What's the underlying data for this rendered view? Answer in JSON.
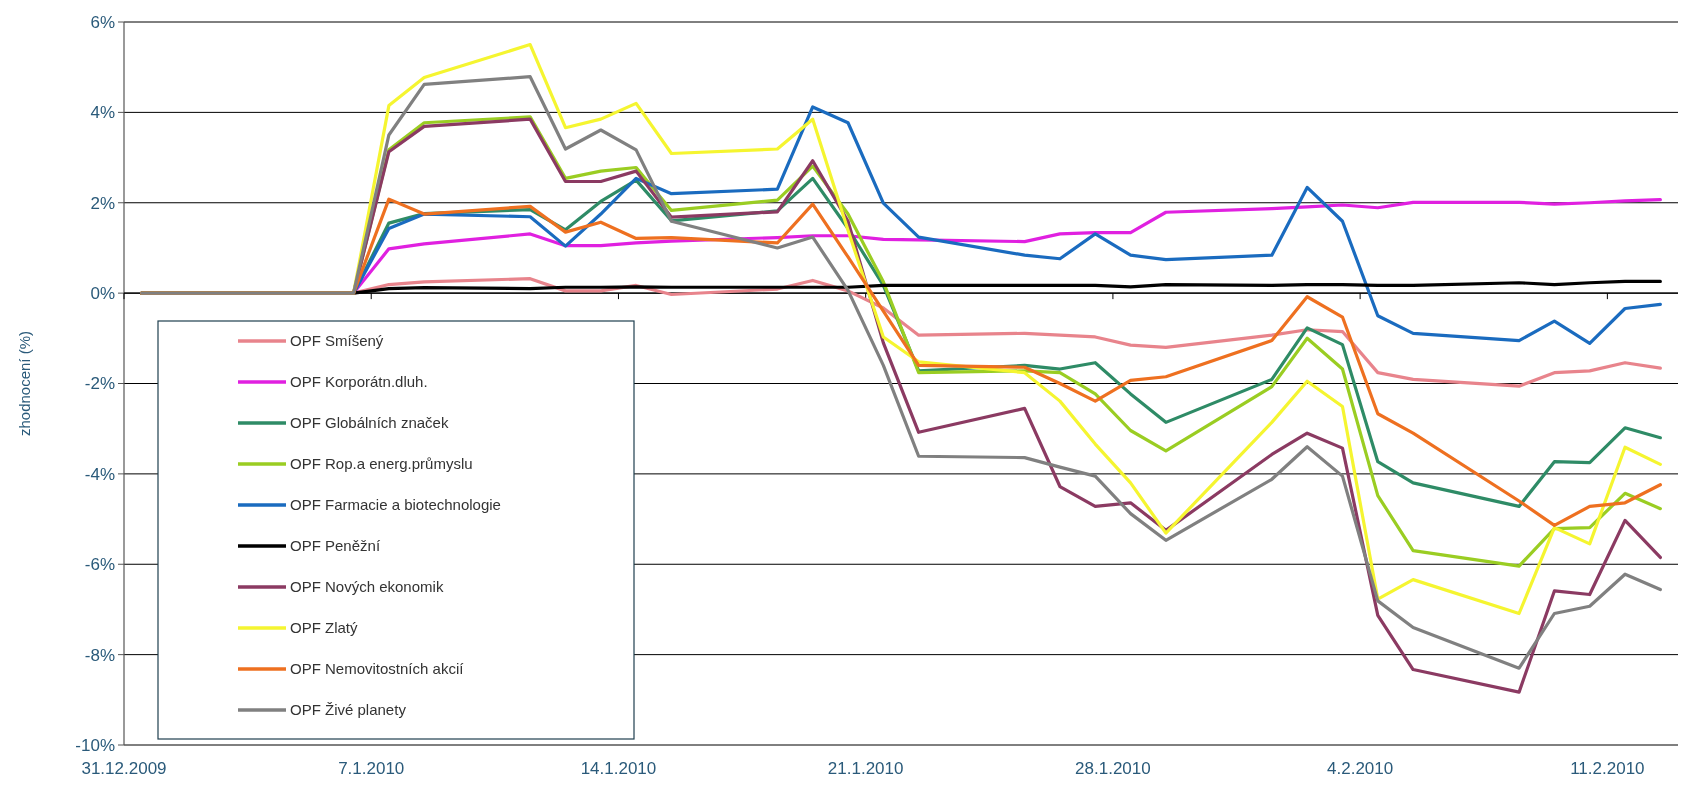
{
  "chart_data": {
    "type": "line",
    "ylabel": "zhodnocení (%)",
    "x": [
      "2009-12-31T12:00",
      "2010-01-06T12:00",
      "2010-01-07T12:00",
      "2010-01-08T12:00",
      "2010-01-11T12:00",
      "2010-01-12T12:00",
      "2010-01-13T12:00",
      "2010-01-14T12:00",
      "2010-01-15T12:00",
      "2010-01-18T12:00",
      "2010-01-19T12:00",
      "2010-01-20T12:00",
      "2010-01-21T12:00",
      "2010-01-22T12:00",
      "2010-01-25T12:00",
      "2010-01-26T12:00",
      "2010-01-27T12:00",
      "2010-01-28T12:00",
      "2010-01-29T12:00",
      "2010-02-01T12:00",
      "2010-02-02T12:00",
      "2010-02-03T12:00",
      "2010-02-04T12:00",
      "2010-02-05T12:00",
      "2010-02-08T12:00",
      "2010-02-09T12:00",
      "2010-02-10T12:00",
      "2010-02-11T12:00",
      "2010-02-12T12:00"
    ],
    "xlim": [
      "2009-12-31",
      "2010-02-13"
    ],
    "xticks": [
      {
        "value": "2009-12-31",
        "label": "31.12.2009"
      },
      {
        "value": "2010-01-07",
        "label": "7.1.2010"
      },
      {
        "value": "2010-01-14",
        "label": "14.1.2010"
      },
      {
        "value": "2010-01-21",
        "label": "21.1.2010"
      },
      {
        "value": "2010-01-28",
        "label": "28.1.2010"
      },
      {
        "value": "2010-02-04",
        "label": "4.2.2010"
      },
      {
        "value": "2010-02-11",
        "label": "11.2.2010"
      }
    ],
    "ylim": [
      -10,
      6
    ],
    "yticks": [
      {
        "value": -10,
        "label": "-10%"
      },
      {
        "value": -8,
        "label": "-8%"
      },
      {
        "value": -6,
        "label": "-6%"
      },
      {
        "value": -4,
        "label": "-4%"
      },
      {
        "value": -2,
        "label": "-2%"
      },
      {
        "value": 0,
        "label": "0%"
      },
      {
        "value": 2,
        "label": "2%"
      },
      {
        "value": 4,
        "label": "4%"
      },
      {
        "value": 6,
        "label": "6%"
      }
    ],
    "grid": "y",
    "legend": "bottom left",
    "marker": "none",
    "line_style": "solid",
    "series": [
      {
        "name": "OPF Smíšený",
        "color": "#e8848c",
        "values": [
          0,
          0,
          0.19,
          0.25,
          0.32,
          0.05,
          0.05,
          0.17,
          -0.03,
          0.09,
          0.28,
          0.05,
          -0.33,
          -0.93,
          -0.89,
          -0.93,
          -0.97,
          -1.15,
          -1.2,
          -0.93,
          -0.81,
          -0.85,
          -1.76,
          -1.91,
          -2.06,
          -1.76,
          -1.72,
          -1.54,
          -1.66
        ]
      },
      {
        "name": "OPF Korporátn.dluh.",
        "color": "#e020e0",
        "values": [
          0,
          0,
          0.98,
          1.09,
          1.31,
          1.05,
          1.05,
          1.11,
          1.15,
          1.23,
          1.27,
          1.27,
          1.19,
          1.18,
          1.14,
          1.31,
          1.34,
          1.34,
          1.79,
          1.87,
          1.91,
          1.95,
          1.89,
          2.01,
          2.01,
          1.97,
          2,
          2.04,
          2.07
        ]
      },
      {
        "name": "OPF Globálních značek",
        "color": "#2e8b66",
        "values": [
          0,
          0,
          1.55,
          1.76,
          1.85,
          1.4,
          2.03,
          2.5,
          1.6,
          1.82,
          2.54,
          1.43,
          0.17,
          -1.72,
          -1.6,
          -1.68,
          -1.54,
          -2.23,
          -2.86,
          -1.91,
          -0.77,
          -1.14,
          -3.73,
          -4.2,
          -4.72,
          -3.73,
          -3.75,
          -2.98,
          -3.2
        ]
      },
      {
        "name": "OPF Rop.a energ.průmyslu",
        "color": "#9acd22",
        "values": [
          0,
          0,
          3.17,
          3.77,
          3.9,
          2.54,
          2.7,
          2.78,
          1.83,
          2.06,
          2.81,
          1.75,
          0.25,
          -1.76,
          -1.72,
          -1.76,
          -2.23,
          -3.04,
          -3.49,
          -2.07,
          -1,
          -1.68,
          -4.48,
          -5.7,
          -6.04,
          -5.21,
          -5.19,
          -4.43,
          -4.77
        ]
      },
      {
        "name": "OPF Farmacie a biotechnologie",
        "color": "#1a6bbf",
        "values": [
          0,
          0,
          1.43,
          1.75,
          1.69,
          1.04,
          1.75,
          2.54,
          2.2,
          2.3,
          4.12,
          3.77,
          1.99,
          1.24,
          0.84,
          0.76,
          1.31,
          0.84,
          0.74,
          0.84,
          2.34,
          1.59,
          -0.5,
          -0.89,
          -1.05,
          -0.62,
          -1.11,
          -0.34,
          -0.25
        ]
      },
      {
        "name": "OPF Peněžní",
        "color": "#000000",
        "values": [
          0,
          0,
          0.1,
          0.12,
          0.1,
          0.13,
          0.13,
          0.14,
          0.13,
          0.13,
          0.13,
          0.13,
          0.17,
          0.17,
          0.17,
          0.17,
          0.17,
          0.14,
          0.19,
          0.17,
          0.19,
          0.19,
          0.17,
          0.17,
          0.23,
          0.19,
          0.23,
          0.26,
          0.26
        ]
      },
      {
        "name": "OPF Nových ekonomik",
        "color": "#8b3a62",
        "values": [
          0,
          0,
          3.13,
          3.69,
          3.85,
          2.47,
          2.47,
          2.7,
          1.68,
          1.8,
          2.93,
          1.59,
          -1.1,
          -3.08,
          -2.55,
          -4.28,
          -4.72,
          -4.64,
          -5.25,
          -3.57,
          -3.1,
          -3.43,
          -7.13,
          -8.33,
          -8.83,
          -6.59,
          -6.67,
          -5.03,
          -5.85
        ]
      },
      {
        "name": "OPF Zlatý",
        "color": "#f5f530",
        "values": [
          0,
          0,
          4.15,
          4.77,
          5.5,
          3.66,
          3.85,
          4.2,
          3.09,
          3.19,
          3.85,
          1.39,
          -0.97,
          -1.52,
          -1.76,
          -2.39,
          -3.34,
          -4.2,
          -5.31,
          -2.86,
          -1.95,
          -2.51,
          -6.77,
          -6.34,
          -7.09,
          -5.19,
          -5.55,
          -3.41,
          -3.79
        ]
      },
      {
        "name": "OPF Nemovitostních akcií",
        "color": "#ee7020",
        "values": [
          0,
          0,
          2.08,
          1.75,
          1.92,
          1.35,
          1.57,
          1.21,
          1.23,
          1.11,
          1.97,
          0.8,
          -0.4,
          -1.6,
          -1.64,
          -2,
          -2.39,
          -1.93,
          -1.85,
          -1.05,
          -0.08,
          -0.53,
          -2.67,
          -3.1,
          -4.6,
          -5.14,
          -4.72,
          -4.64,
          -4.24
        ]
      },
      {
        "name": "OPF Živé planety",
        "color": "#808080",
        "values": [
          0,
          0,
          3.5,
          4.62,
          4.79,
          3.19,
          3.61,
          3.17,
          1.59,
          1,
          1.24,
          0.06,
          -1.6,
          -3.61,
          -3.64,
          -3.85,
          -4.05,
          -4.88,
          -5.47,
          -4.12,
          -3.4,
          -4.05,
          -6.81,
          -7.4,
          -8.3,
          -7.09,
          -6.93,
          -6.22,
          -6.56
        ]
      }
    ]
  }
}
